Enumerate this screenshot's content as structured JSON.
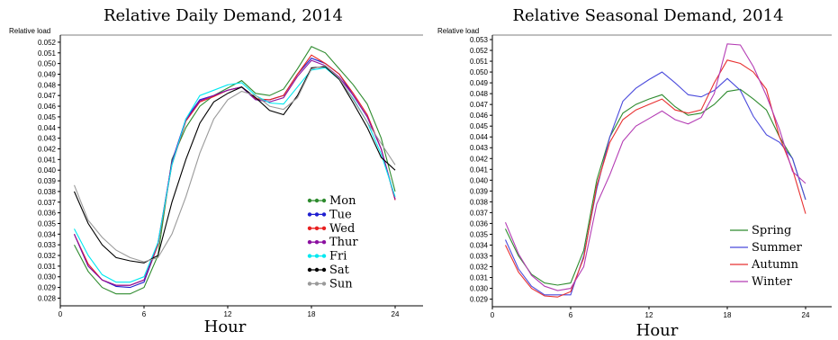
{
  "chart_data": [
    {
      "type": "line",
      "title": "Relative Daily Demand, 2014",
      "ylabel": "Relative load",
      "xlabel": "Hour",
      "xlim": [
        0,
        26
      ],
      "ylim": [
        0.0277,
        0.0525
      ],
      "xticks": [
        0,
        6,
        12,
        18,
        24
      ],
      "yticks": [
        0.028,
        0.029,
        0.03,
        0.031,
        0.032,
        0.033,
        0.034,
        0.035,
        0.036,
        0.037,
        0.038,
        0.039,
        0.04,
        0.041,
        0.042,
        0.043,
        0.044,
        0.045,
        0.046,
        0.047,
        0.048,
        0.049,
        0.05,
        0.051,
        0.052
      ],
      "ytick_labels": [
        "0.028",
        "0.029",
        "0.030",
        "0.031",
        "0.032",
        "0.033",
        "0.034",
        "0.035",
        "0.036",
        "0.037",
        "0.038",
        "0.039",
        "0.040",
        "0.041",
        "0.042",
        "0.043",
        "0.044",
        "0.045",
        "0.046",
        "0.047",
        "0.048",
        "0.049",
        "0.050",
        "0.051",
        "0.052"
      ],
      "x": [
        1,
        2,
        3,
        4,
        5,
        6,
        7,
        8,
        9,
        10,
        11,
        12,
        13,
        14,
        15,
        16,
        17,
        18,
        19,
        20,
        21,
        22,
        23,
        24
      ],
      "legend_position": "lower-right",
      "series": [
        {
          "name": "Mon",
          "color": "#2e8b2e",
          "values": [
            0.033,
            0.0305,
            0.029,
            0.0284,
            0.0284,
            0.029,
            0.032,
            0.041,
            0.044,
            0.046,
            0.047,
            0.0477,
            0.0484,
            0.0472,
            0.047,
            0.0476,
            0.0495,
            0.0516,
            0.051,
            0.0495,
            0.048,
            0.0462,
            0.043,
            0.038
          ]
        },
        {
          "name": "Tue",
          "color": "#1f1fd0",
          "values": [
            0.034,
            0.031,
            0.0297,
            0.0291,
            0.029,
            0.0295,
            0.033,
            0.0408,
            0.0448,
            0.0466,
            0.047,
            0.0475,
            0.0478,
            0.0466,
            0.0466,
            0.047,
            0.049,
            0.0505,
            0.05,
            0.049,
            0.047,
            0.045,
            0.042,
            0.0372
          ]
        },
        {
          "name": "Wed",
          "color": "#e82020",
          "values": [
            0.034,
            0.0312,
            0.0297,
            0.0292,
            0.0292,
            0.0297,
            0.033,
            0.0405,
            0.0446,
            0.0464,
            0.0469,
            0.0475,
            0.0478,
            0.0467,
            0.0466,
            0.047,
            0.049,
            0.0508,
            0.05,
            0.049,
            0.0472,
            0.0452,
            0.042,
            0.0372
          ]
        },
        {
          "name": "Thur",
          "color": "#8b10a0",
          "values": [
            0.034,
            0.031,
            0.0297,
            0.0292,
            0.0292,
            0.0297,
            0.0332,
            0.0407,
            0.0447,
            0.0465,
            0.047,
            0.0475,
            0.0478,
            0.0466,
            0.0464,
            0.0468,
            0.0488,
            0.0503,
            0.0498,
            0.0487,
            0.047,
            0.045,
            0.042,
            0.0373
          ]
        },
        {
          "name": "Fri",
          "color": "#00e8f0",
          "values": [
            0.0345,
            0.032,
            0.0302,
            0.0295,
            0.0295,
            0.03,
            0.0332,
            0.0405,
            0.0448,
            0.047,
            0.0475,
            0.048,
            0.0482,
            0.047,
            0.0463,
            0.0462,
            0.0478,
            0.0494,
            0.0496,
            0.0485,
            0.0467,
            0.0445,
            0.0415,
            0.0375
          ]
        },
        {
          "name": "Sat",
          "color": "#000000",
          "values": [
            0.038,
            0.035,
            0.033,
            0.0318,
            0.0315,
            0.0313,
            0.032,
            0.037,
            0.041,
            0.0444,
            0.0464,
            0.0472,
            0.0478,
            0.0468,
            0.0456,
            0.0452,
            0.047,
            0.0496,
            0.0497,
            0.0485,
            0.0463,
            0.044,
            0.0412,
            0.04
          ]
        },
        {
          "name": "Sun",
          "color": "#9a9a9a",
          "values": [
            0.0386,
            0.0353,
            0.0337,
            0.0325,
            0.0318,
            0.0314,
            0.0318,
            0.034,
            0.0375,
            0.0416,
            0.0448,
            0.0466,
            0.0474,
            0.047,
            0.046,
            0.0457,
            0.0468,
            0.0495,
            0.0498,
            0.0486,
            0.0466,
            0.0445,
            0.0425,
            0.0405
          ]
        }
      ]
    },
    {
      "type": "line",
      "title": "Relative Seasonal Demand, 2014",
      "ylabel": "Relative load",
      "xlabel": "Hour",
      "xlim": [
        0,
        26
      ],
      "ylim": [
        0.0288,
        0.053
      ],
      "xticks": [
        0,
        6,
        12,
        18,
        24
      ],
      "yticks": [
        0.029,
        0.03,
        0.031,
        0.032,
        0.033,
        0.034,
        0.035,
        0.036,
        0.037,
        0.038,
        0.039,
        0.04,
        0.041,
        0.042,
        0.043,
        0.044,
        0.045,
        0.046,
        0.047,
        0.048,
        0.049,
        0.05,
        0.051,
        0.052,
        0.053
      ],
      "ytick_labels": [
        "0.029",
        "0.030",
        "0.031",
        "0.032",
        "0.033",
        "0.034",
        "0.035",
        "0.036",
        "0.037",
        "0.038",
        "0.039",
        "0.040",
        "0.041",
        "0.042",
        "0.043",
        "0.044",
        "0.045",
        "0.046",
        "0.047",
        "0.048",
        "0.049",
        "0.050",
        "0.051",
        "0.052",
        "0.053"
      ],
      "x": [
        1,
        2,
        3,
        4,
        5,
        6,
        7,
        8,
        9,
        10,
        11,
        12,
        13,
        14,
        15,
        16,
        17,
        18,
        19,
        20,
        21,
        22,
        23,
        24
      ],
      "legend_position": "lower-right",
      "series": [
        {
          "name": "Spring",
          "color": "#2e8b2e",
          "values": [
            0.0355,
            0.033,
            0.0313,
            0.0305,
            0.0303,
            0.0305,
            0.0335,
            0.04,
            0.044,
            0.0462,
            0.047,
            0.0475,
            0.0479,
            0.0468,
            0.046,
            0.0462,
            0.047,
            0.0482,
            0.0484,
            0.0475,
            0.0465,
            0.044,
            0.042,
            0.0382
          ]
        },
        {
          "name": "Summer",
          "color": "#4b4bdc",
          "values": [
            0.0345,
            0.0318,
            0.0302,
            0.0294,
            0.0294,
            0.0294,
            0.033,
            0.0392,
            0.044,
            0.0473,
            0.0485,
            0.0493,
            0.05,
            0.049,
            0.0479,
            0.0477,
            0.0483,
            0.0494,
            0.0483,
            0.0459,
            0.0442,
            0.0435,
            0.042,
            0.0382
          ]
        },
        {
          "name": "Autumn",
          "color": "#e83030",
          "values": [
            0.034,
            0.0315,
            0.03,
            0.0293,
            0.0292,
            0.0297,
            0.0328,
            0.0395,
            0.0435,
            0.0456,
            0.0465,
            0.047,
            0.0475,
            0.0465,
            0.0462,
            0.0465,
            0.049,
            0.0511,
            0.0508,
            0.05,
            0.0484,
            0.044,
            0.041,
            0.0369
          ]
        },
        {
          "name": "Winter",
          "color": "#b43cb4",
          "values": [
            0.0361,
            0.0332,
            0.0312,
            0.0302,
            0.0298,
            0.03,
            0.032,
            0.0378,
            0.0405,
            0.0436,
            0.045,
            0.0457,
            0.0464,
            0.0456,
            0.0452,
            0.0458,
            0.048,
            0.0526,
            0.0525,
            0.0505,
            0.0478,
            0.0447,
            0.0408,
            0.0397
          ]
        }
      ]
    }
  ]
}
